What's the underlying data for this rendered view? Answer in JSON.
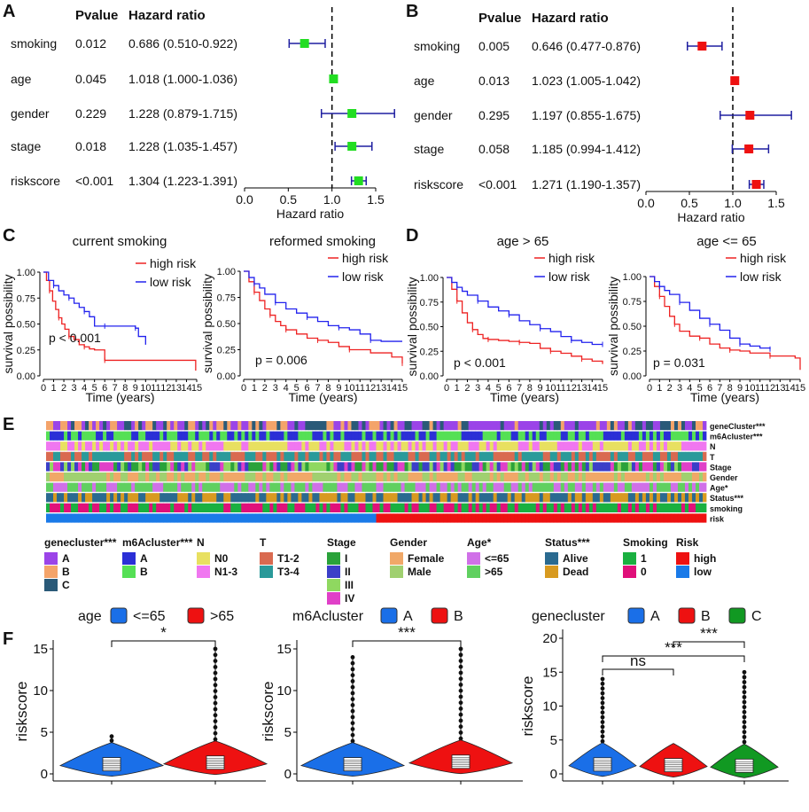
{
  "colors": {
    "green_marker": "#22dd22",
    "red_marker": "#ee1111",
    "ci_line": "#1f1fa0",
    "km_high": "#ee2222",
    "km_low": "#2222ee",
    "violin_blue": "#1a6fe8",
    "violin_red": "#ee1111",
    "violin_green": "#119922"
  },
  "panels": {
    "A": "A",
    "B": "B",
    "C": "C",
    "D": "D",
    "E": "E",
    "F": "F"
  },
  "forest_header": {
    "pvalue": "Pvalue",
    "hr": "Hazard ratio"
  },
  "chart_data": [
    {
      "type": "forest",
      "panel": "A",
      "title": "",
      "xlabel": "Hazard ratio",
      "xlim": [
        0,
        1.5
      ],
      "xticks": [
        "0.0",
        "0.5",
        "1.0",
        "1.5"
      ],
      "reference": 1.0,
      "rows": [
        {
          "name": "smoking",
          "p": "0.012",
          "hr_text": "0.686 (0.510-0.922)",
          "hr": 0.686,
          "lo": 0.51,
          "hi": 0.922
        },
        {
          "name": "age",
          "p": "0.045",
          "hr_text": "1.018 (1.000-1.036)",
          "hr": 1.018,
          "lo": 1.0,
          "hi": 1.036
        },
        {
          "name": "gender",
          "p": "0.229",
          "hr_text": "1.228 (0.879-1.715)",
          "hr": 1.228,
          "lo": 0.879,
          "hi": 1.715
        },
        {
          "name": "stage",
          "p": "0.018",
          "hr_text": "1.228 (1.035-1.457)",
          "hr": 1.228,
          "lo": 1.035,
          "hi": 1.457
        },
        {
          "name": "riskscore",
          "p": "<0.001",
          "hr_text": "1.304 (1.223-1.391)",
          "hr": 1.304,
          "lo": 1.223,
          "hi": 1.391
        }
      ]
    },
    {
      "type": "forest",
      "panel": "B",
      "title": "",
      "xlabel": "Hazard ratio",
      "xlim": [
        0,
        1.5
      ],
      "xticks": [
        "0.0",
        "0.5",
        "1.0",
        "1.5"
      ],
      "reference": 1.0,
      "rows": [
        {
          "name": "smoking",
          "p": "0.005",
          "hr_text": "0.646 (0.477-0.876)",
          "hr": 0.646,
          "lo": 0.477,
          "hi": 0.876
        },
        {
          "name": "age",
          "p": "0.013",
          "hr_text": "1.023 (1.005-1.042)",
          "hr": 1.023,
          "lo": 1.005,
          "hi": 1.042
        },
        {
          "name": "gender",
          "p": "0.295",
          "hr_text": "1.197 (0.855-1.675)",
          "hr": 1.197,
          "lo": 0.855,
          "hi": 1.675
        },
        {
          "name": "stage",
          "p": "0.058",
          "hr_text": "1.185 (0.994-1.412)",
          "hr": 1.185,
          "lo": 0.994,
          "hi": 1.412
        },
        {
          "name": "riskscore",
          "p": "<0.001",
          "hr_text": "1.271 (1.190-1.357)",
          "hr": 1.271,
          "lo": 1.19,
          "hi": 1.357
        }
      ]
    },
    {
      "type": "line",
      "kind": "kaplan-meier",
      "panel": "C",
      "title": "current smoking",
      "xlabel": "Time (years)",
      "ylabel": "survival possibility",
      "xlim": [
        0,
        15
      ],
      "ylim": [
        0,
        1
      ],
      "pvalue": "p < 0.001",
      "series": [
        {
          "name": "high risk",
          "color": "km_high",
          "x": [
            0,
            0.3,
            0.6,
            0.9,
            1.2,
            1.5,
            1.8,
            2.1,
            2.5,
            3,
            3.5,
            4,
            4.5,
            5,
            6,
            14.9
          ],
          "y": [
            1.0,
            0.92,
            0.82,
            0.72,
            0.64,
            0.56,
            0.5,
            0.45,
            0.38,
            0.35,
            0.3,
            0.28,
            0.26,
            0.25,
            0.15,
            0.05
          ]
        },
        {
          "name": "low risk",
          "color": "km_low",
          "x": [
            0,
            0.5,
            1,
            1.5,
            2,
            2.5,
            3,
            3.5,
            4,
            4.5,
            5,
            6,
            7,
            8,
            9,
            9.3,
            10
          ],
          "y": [
            1.0,
            0.92,
            0.87,
            0.82,
            0.78,
            0.75,
            0.7,
            0.66,
            0.62,
            0.57,
            0.48,
            0.48,
            0.48,
            0.48,
            0.46,
            0.38,
            0.3
          ]
        }
      ]
    },
    {
      "type": "line",
      "kind": "kaplan-meier",
      "panel": "C",
      "title": "reformed smoking",
      "xlabel": "Time (years)",
      "ylabel": "survival possibility",
      "xlim": [
        0,
        15
      ],
      "ylim": [
        0,
        1
      ],
      "pvalue": "p = 0.006",
      "series": [
        {
          "name": "high risk",
          "color": "km_high",
          "x": [
            0,
            0.5,
            1,
            1.5,
            2,
            2.5,
            3,
            3.5,
            4,
            5,
            6,
            7,
            8,
            9,
            10,
            12,
            14,
            15
          ],
          "y": [
            1.0,
            0.9,
            0.8,
            0.72,
            0.64,
            0.58,
            0.52,
            0.48,
            0.44,
            0.4,
            0.36,
            0.34,
            0.32,
            0.28,
            0.25,
            0.22,
            0.18,
            0.12
          ]
        },
        {
          "name": "low risk",
          "color": "km_low",
          "x": [
            0,
            0.5,
            1,
            1.5,
            2,
            3,
            4,
            5,
            6,
            7,
            8,
            9,
            10,
            11,
            12,
            13,
            15
          ],
          "y": [
            1.0,
            0.94,
            0.88,
            0.84,
            0.78,
            0.7,
            0.64,
            0.6,
            0.56,
            0.52,
            0.48,
            0.46,
            0.44,
            0.4,
            0.34,
            0.33,
            0.33
          ]
        }
      ]
    },
    {
      "type": "line",
      "kind": "kaplan-meier",
      "panel": "D",
      "title": "age > 65",
      "xlabel": "Time (years)",
      "ylabel": "survival possibility",
      "xlim": [
        0,
        15
      ],
      "ylim": [
        0,
        1
      ],
      "pvalue": "p < 0.001",
      "series": [
        {
          "name": "high risk",
          "color": "km_high",
          "x": [
            0,
            0.5,
            1,
            1.5,
            2,
            2.5,
            3,
            3.5,
            4,
            5,
            6,
            7,
            8,
            9,
            10,
            11,
            12,
            13,
            14,
            15
          ],
          "y": [
            1.0,
            0.88,
            0.76,
            0.64,
            0.54,
            0.47,
            0.42,
            0.38,
            0.37,
            0.36,
            0.35,
            0.34,
            0.33,
            0.28,
            0.25,
            0.23,
            0.2,
            0.17,
            0.15,
            0.12
          ]
        },
        {
          "name": "low risk",
          "color": "km_low",
          "x": [
            0,
            0.5,
            1,
            1.5,
            2,
            3,
            4,
            5,
            6,
            7,
            8,
            9,
            10,
            11,
            12,
            13,
            14,
            15
          ],
          "y": [
            1.0,
            0.95,
            0.9,
            0.86,
            0.82,
            0.76,
            0.7,
            0.66,
            0.62,
            0.56,
            0.52,
            0.48,
            0.45,
            0.4,
            0.36,
            0.34,
            0.32,
            0.32
          ]
        }
      ]
    },
    {
      "type": "line",
      "kind": "kaplan-meier",
      "panel": "D",
      "title": "age <= 65",
      "xlabel": "Time (years)",
      "ylabel": "survival possibility",
      "xlim": [
        0,
        15
      ],
      "ylim": [
        0,
        1
      ],
      "pvalue": "p = 0.031",
      "series": [
        {
          "name": "high risk",
          "color": "km_high",
          "x": [
            0,
            0.5,
            1,
            1.5,
            2,
            2.5,
            3,
            4,
            5,
            6,
            7,
            8,
            9,
            10,
            12,
            14.5,
            15
          ],
          "y": [
            1.0,
            0.9,
            0.8,
            0.7,
            0.6,
            0.52,
            0.45,
            0.4,
            0.38,
            0.32,
            0.28,
            0.26,
            0.25,
            0.23,
            0.2,
            0.18,
            0.06
          ]
        },
        {
          "name": "low risk",
          "color": "km_low",
          "x": [
            0,
            0.5,
            1,
            1.5,
            2,
            3,
            4,
            5,
            6,
            7,
            8,
            9,
            10,
            11,
            12
          ],
          "y": [
            1.0,
            0.95,
            0.9,
            0.86,
            0.82,
            0.74,
            0.66,
            0.58,
            0.52,
            0.46,
            0.38,
            0.32,
            0.3,
            0.28,
            0.27
          ]
        }
      ]
    },
    {
      "type": "heatmap",
      "panel": "E",
      "rows": [
        "geneCluster***",
        "m6Acluster***",
        "N",
        "T",
        "Stage",
        "Gender",
        "Age*",
        "Status***",
        "smoking",
        "risk"
      ],
      "risk_split": 0.5,
      "legend": [
        {
          "title": "genecluster***",
          "items": [
            {
              "label": "A",
              "color": "#9b44e8"
            },
            {
              "label": "B",
              "color": "#f4a46a"
            },
            {
              "label": "C",
              "color": "#2a5a78"
            }
          ]
        },
        {
          "title": "m6Acluster***",
          "items": [
            {
              "label": "A",
              "color": "#2b2fd6"
            },
            {
              "label": "B",
              "color": "#55e055"
            }
          ]
        },
        {
          "title": "N",
          "items": [
            {
              "label": "N0",
              "color": "#e8e060"
            },
            {
              "label": "N1-3",
              "color": "#f077f0"
            }
          ]
        },
        {
          "title": "T",
          "items": [
            {
              "label": "T1-2",
              "color": "#d96a50"
            },
            {
              "label": "T3-4",
              "color": "#2a9a9a"
            }
          ]
        },
        {
          "title": "Stage",
          "items": [
            {
              "label": "I",
              "color": "#2aa23a"
            },
            {
              "label": "II",
              "color": "#3b3fc8"
            },
            {
              "label": "III",
              "color": "#8fd860"
            },
            {
              "label": "IV",
              "color": "#e040c8"
            }
          ]
        },
        {
          "title": "Gender",
          "items": [
            {
              "label": "Female",
              "color": "#f0a868"
            },
            {
              "label": "Male",
              "color": "#a0d070"
            }
          ]
        },
        {
          "title": "Age*",
          "items": [
            {
              "label": "<=65",
              "color": "#d070e8"
            },
            {
              "label": ">65",
              "color": "#60d060"
            }
          ]
        },
        {
          "title": "Status***",
          "items": [
            {
              "label": "Alive",
              "color": "#2a6a90"
            },
            {
              "label": "Dead",
              "color": "#d89a20"
            }
          ]
        },
        {
          "title": "Smoking",
          "items": [
            {
              "label": "1",
              "color": "#1ab040"
            },
            {
              "label": "0",
              "color": "#e0107a"
            }
          ]
        },
        {
          "title": "Risk",
          "items": [
            {
              "label": "high",
              "color": "#ee1111"
            },
            {
              "label": "low",
              "color": "#1a7ae8"
            }
          ]
        }
      ]
    },
    {
      "type": "violin",
      "panel": "F",
      "legend_title": "age",
      "ylabel": "riskscore",
      "ylim": [
        0,
        15
      ],
      "yticks": [
        0,
        5,
        10,
        15
      ],
      "groups": [
        {
          "label": "<=65",
          "color": "violin_blue",
          "median": 1.0,
          "max": 4.5
        },
        {
          "label": ">65",
          "color": "violin_red",
          "median": 1.2,
          "max": 15
        }
      ],
      "comparisons": [
        {
          "from": 0,
          "to": 1,
          "label": "*"
        }
      ]
    },
    {
      "type": "violin",
      "panel": "F",
      "legend_title": "m6Acluster",
      "ylabel": "riskscore",
      "ylim": [
        0,
        15
      ],
      "yticks": [
        0,
        5,
        10,
        15
      ],
      "groups": [
        {
          "label": "A",
          "color": "violin_blue",
          "median": 1.0,
          "max": 14
        },
        {
          "label": "B",
          "color": "violin_red",
          "median": 1.3,
          "max": 15
        }
      ],
      "comparisons": [
        {
          "from": 0,
          "to": 1,
          "label": "***"
        }
      ]
    },
    {
      "type": "violin",
      "panel": "F",
      "legend_title": "genecluster",
      "ylabel": "riskscore",
      "ylim": [
        0,
        20
      ],
      "yticks": [
        0,
        5,
        10,
        15,
        20
      ],
      "groups": [
        {
          "label": "A",
          "color": "violin_blue",
          "median": 1.2,
          "max": 14
        },
        {
          "label": "B",
          "color": "violin_red",
          "median": 1.1,
          "max": 3
        },
        {
          "label": "C",
          "color": "violin_green",
          "median": 1.0,
          "max": 15
        }
      ],
      "comparisons": [
        {
          "from": 0,
          "to": 1,
          "label": "ns"
        },
        {
          "from": 0,
          "to": 2,
          "label": "***"
        },
        {
          "from": 1,
          "to": 2,
          "label": "***"
        }
      ]
    }
  ]
}
